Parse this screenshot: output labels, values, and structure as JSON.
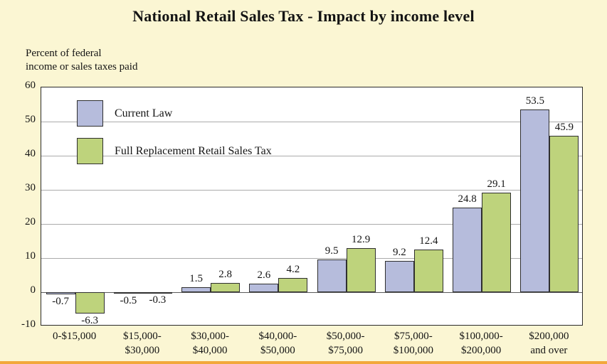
{
  "title": "National Retail Sales Tax - Impact by income level",
  "axis_note": {
    "line1": "Percent of federal",
    "line2": "income or sales taxes paid"
  },
  "colors": {
    "page_background": "#fbf6d3",
    "plot_background": "#ffffff",
    "current_law_bar": "#b6bcdc",
    "sales_tax_bar": "#bed37c",
    "bottom_edge_strip": "#f2a83b"
  },
  "chart_data": {
    "type": "bar",
    "title": "National Retail Sales Tax - Impact by income level",
    "ylabel": "Percent of federal income or sales taxes paid",
    "xlabel": "",
    "ylim": [
      -10,
      60
    ],
    "yticks": [
      60,
      50,
      40,
      30,
      20,
      10,
      0,
      -10
    ],
    "grid": true,
    "legend_position": "top-left-inside",
    "categories": [
      "0-$15,000",
      "$15,000-\n$30,000",
      "$30,000-\n$40,000",
      "$40,000-\n$50,000",
      "$50,000-\n$75,000",
      "$75,000-\n$100,000",
      "$100,000-\n$200,000",
      "$200,000\nand over"
    ],
    "series": [
      {
        "name": "Current Law",
        "color": "#b6bcdc",
        "values": [
          -0.7,
          -0.5,
          1.5,
          2.6,
          9.5,
          9.2,
          24.8,
          53.5
        ]
      },
      {
        "name": "Full Replacement Retail Sales Tax",
        "color": "#bed37c",
        "values": [
          -6.3,
          -0.3,
          2.8,
          4.2,
          12.9,
          12.4,
          29.1,
          45.9
        ]
      }
    ]
  }
}
